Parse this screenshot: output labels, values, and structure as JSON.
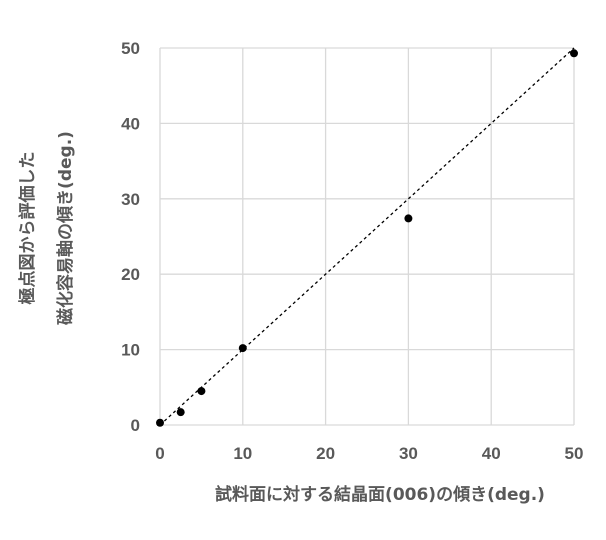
{
  "chart_data": {
    "type": "scatter",
    "xlabel": "試料面に対する結晶面(006)の傾き(deg.)",
    "ylabel_lines": [
      "極点図から評価した",
      "磁化容易軸の傾き(deg.)"
    ],
    "xlim": [
      0,
      50
    ],
    "ylim": [
      0,
      50
    ],
    "x_ticks": [
      0,
      10,
      20,
      30,
      40,
      50
    ],
    "y_ticks": [
      0,
      10,
      20,
      30,
      40,
      50
    ],
    "grid": true,
    "points": [
      {
        "x": 0,
        "y": 0.3
      },
      {
        "x": 2.5,
        "y": 1.7
      },
      {
        "x": 5,
        "y": 4.5
      },
      {
        "x": 10,
        "y": 10.2
      },
      {
        "x": 30,
        "y": 27.4
      },
      {
        "x": 50,
        "y": 49.3
      }
    ],
    "trendline": {
      "style": "dashed",
      "from": [
        0,
        0
      ],
      "to": [
        50,
        50
      ]
    },
    "colors": {
      "points": "#000000",
      "grid": "#d9d9d9",
      "text": "#595959"
    }
  }
}
